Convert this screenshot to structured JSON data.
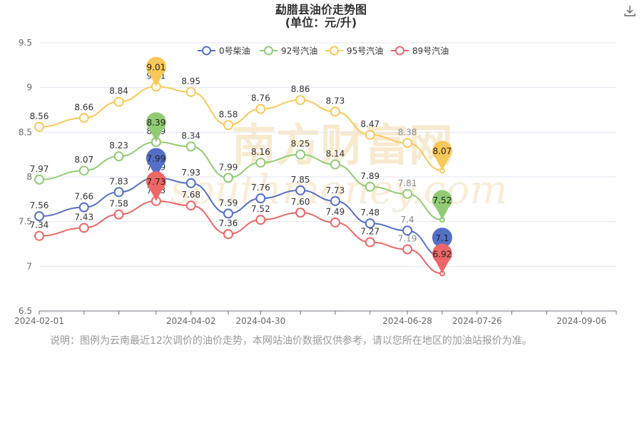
{
  "header": {
    "title": "勐腊县油价走势图",
    "subtitle": "(单位：元/升)"
  },
  "toolbar": {
    "download_icon": "download-icon"
  },
  "watermark": {
    "main": "南方财富网",
    "sub": "southmoney.com"
  },
  "note": "说明：图例为云南最近12次调价的油价走势，本网站油价数据仅供参考，请以您所在地区的加油站报价为准。",
  "colors": {
    "0号柴油": "#5470c6",
    "92号汽油": "#91cc75",
    "95号汽油": "#fac858",
    "89号汽油": "#ee6666",
    "axis": "#6e7079",
    "grid": "#e0e6f1",
    "watermark": "#f3d9a8"
  },
  "chart_data": {
    "type": "line",
    "title": "勐腊县油价走势图",
    "subtitle": "(单位：元/升)",
    "xlabel": "",
    "ylabel": "",
    "ylim": [
      6.5,
      9.5
    ],
    "yticks": [
      "6.5",
      "7",
      "7.5",
      "8",
      "8.5",
      "9",
      "9.5"
    ],
    "x": [
      "2024-02-01",
      "2024-02-19",
      "2024-03-04",
      "2024-03-19",
      "2024-04-02",
      "2024-04-17",
      "2024-04-30",
      "2024-05-16",
      "2024-05-30",
      "2024-06-13",
      "2024-06-28",
      "2024-07-12",
      "2024-07-26",
      "2024-08-09",
      "2024-08-23",
      "2024-09-06",
      "2024-09-20"
    ],
    "xtick_labels": [
      "2024-02-01",
      "2024-04-02",
      "2024-04-30",
      "2024-06-28",
      "2024-07-26",
      "2024-09-06"
    ],
    "legend": [
      "0号柴油",
      "92号汽油",
      "95号汽油",
      "89号汽油"
    ],
    "legend_position": "top-center",
    "grid": true,
    "series": [
      {
        "name": "0号柴油",
        "points": [
          [
            "2024-02-01",
            7.56
          ],
          [
            "2024-02-19",
            7.66
          ],
          [
            "2024-03-04",
            7.83
          ],
          [
            "2024-03-19",
            7.99
          ],
          [
            "2024-04-02",
            7.93
          ],
          [
            "2024-04-17",
            7.59
          ],
          [
            "2024-04-30",
            7.76
          ],
          [
            "2024-05-16",
            7.85
          ],
          [
            "2024-05-30",
            7.73
          ],
          [
            "2024-06-13",
            7.48
          ],
          [
            "2024-06-28",
            7.4
          ],
          [
            "2024-07-12",
            7.1
          ]
        ],
        "labels": [
          "7.56",
          "7.66",
          "7.83",
          "7.99",
          "7.93",
          "7.59",
          "7.76",
          "7.85",
          "7.73",
          "7.48",
          "7.4",
          ""
        ],
        "max": "7.99",
        "min": "7.1"
      },
      {
        "name": "92号汽油",
        "points": [
          [
            "2024-02-01",
            7.97
          ],
          [
            "2024-02-19",
            8.07
          ],
          [
            "2024-03-04",
            8.23
          ],
          [
            "2024-03-19",
            8.39
          ],
          [
            "2024-04-02",
            8.34
          ],
          [
            "2024-04-17",
            7.99
          ],
          [
            "2024-04-30",
            8.16
          ],
          [
            "2024-05-16",
            8.25
          ],
          [
            "2024-05-30",
            8.14
          ],
          [
            "2024-06-13",
            7.89
          ],
          [
            "2024-06-28",
            7.81
          ],
          [
            "2024-07-12",
            7.52
          ]
        ],
        "labels": [
          "7.97",
          "8.07",
          "8.23",
          "8.39",
          "8.34",
          "7.99",
          "8.16",
          "8.25",
          "8.14",
          "7.89",
          "7.81",
          ""
        ],
        "max": "8.39",
        "min": "7.52"
      },
      {
        "name": "95号汽油",
        "points": [
          [
            "2024-02-01",
            8.56
          ],
          [
            "2024-02-19",
            8.66
          ],
          [
            "2024-03-04",
            8.84
          ],
          [
            "2024-03-19",
            9.01
          ],
          [
            "2024-04-02",
            8.95
          ],
          [
            "2024-04-17",
            8.58
          ],
          [
            "2024-04-30",
            8.76
          ],
          [
            "2024-05-16",
            8.86
          ],
          [
            "2024-05-30",
            8.73
          ],
          [
            "2024-06-13",
            8.47
          ],
          [
            "2024-06-28",
            8.38
          ],
          [
            "2024-07-12",
            8.07
          ]
        ],
        "labels": [
          "8.56",
          "8.66",
          "8.84",
          "9.01",
          "8.95",
          "8.58",
          "8.76",
          "8.86",
          "8.73",
          "8.47",
          "8.38",
          ""
        ],
        "max": "9.01",
        "min": "8.07"
      },
      {
        "name": "89号汽油",
        "points": [
          [
            "2024-02-01",
            7.34
          ],
          [
            "2024-02-19",
            7.43
          ],
          [
            "2024-03-04",
            7.58
          ],
          [
            "2024-03-19",
            7.73
          ],
          [
            "2024-04-02",
            7.68
          ],
          [
            "2024-04-17",
            7.36
          ],
          [
            "2024-04-30",
            7.52
          ],
          [
            "2024-05-16",
            7.6
          ],
          [
            "2024-05-30",
            7.49
          ],
          [
            "2024-06-13",
            7.27
          ],
          [
            "2024-06-28",
            7.19
          ],
          [
            "2024-07-12",
            6.92
          ]
        ],
        "labels": [
          "7.34",
          "7.43",
          "7.58",
          "7.73",
          "7.68",
          "7.36",
          "7.52",
          "7.60",
          "7.49",
          "7.27",
          "7.19",
          ""
        ],
        "max": "7.73",
        "min": "6.92"
      }
    ]
  }
}
